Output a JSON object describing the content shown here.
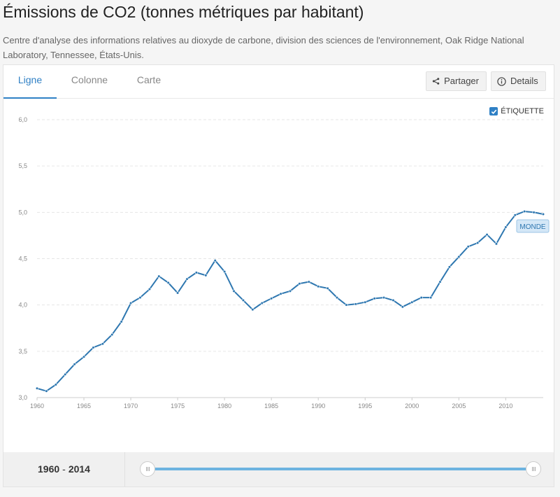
{
  "header": {
    "title": "Émissions de CO2 (tonnes métriques par habitant)",
    "source": "Centre d'analyse des informations relatives au dioxyde de carbone, division des sciences de l'environnement, Oak Ridge National Laboratory, Tennessee, États-Unis."
  },
  "tabs": [
    {
      "label": "Ligne",
      "active": true
    },
    {
      "label": "Colonne",
      "active": false
    },
    {
      "label": "Carte",
      "active": false
    }
  ],
  "toolbar": {
    "share_label": "Partager",
    "share_icon": "share-icon",
    "details_label": "Details",
    "details_icon": "info-icon"
  },
  "label_toggle": {
    "label": "ÉTIQUETTE",
    "checked": true
  },
  "range": {
    "start": "1960",
    "separator": "-",
    "end": "2014"
  },
  "colors": {
    "accent": "#2f80c5",
    "line": "#2e77b0",
    "label_bg": "#d4e7f7"
  },
  "chart_data": {
    "type": "line",
    "title": "",
    "xlabel": "",
    "ylabel": "",
    "xlim": [
      1960,
      2014
    ],
    "ylim": [
      3.0,
      6.0
    ],
    "x_ticks": [
      1960,
      1965,
      1970,
      1975,
      1980,
      1985,
      1990,
      1995,
      2000,
      2005,
      2010
    ],
    "y_ticks": [
      "3,0",
      "3,5",
      "4,0",
      "4,5",
      "5,0",
      "5,5",
      "6,0"
    ],
    "grid": true,
    "series": [
      {
        "name": "MONDE",
        "x": [
          1960,
          1961,
          1962,
          1963,
          1964,
          1965,
          1966,
          1967,
          1968,
          1969,
          1970,
          1971,
          1972,
          1973,
          1974,
          1975,
          1976,
          1977,
          1978,
          1979,
          1980,
          1981,
          1982,
          1983,
          1984,
          1985,
          1986,
          1987,
          1988,
          1989,
          1990,
          1991,
          1992,
          1993,
          1994,
          1995,
          1996,
          1997,
          1998,
          1999,
          2000,
          2001,
          2002,
          2003,
          2004,
          2005,
          2006,
          2007,
          2008,
          2009,
          2010,
          2011,
          2012,
          2013,
          2014
        ],
        "values": [
          3.1,
          3.07,
          3.14,
          3.25,
          3.36,
          3.44,
          3.54,
          3.58,
          3.68,
          3.82,
          4.02,
          4.08,
          4.17,
          4.31,
          4.24,
          4.13,
          4.28,
          4.35,
          4.32,
          4.48,
          4.36,
          4.15,
          4.05,
          3.95,
          4.02,
          4.07,
          4.12,
          4.15,
          4.23,
          4.25,
          4.2,
          4.18,
          4.08,
          4.0,
          4.01,
          4.03,
          4.07,
          4.08,
          4.05,
          3.98,
          4.03,
          4.08,
          4.08,
          4.25,
          4.41,
          4.52,
          4.63,
          4.67,
          4.76,
          4.66,
          4.84,
          4.97,
          5.01,
          5.0,
          4.98
        ]
      }
    ]
  }
}
